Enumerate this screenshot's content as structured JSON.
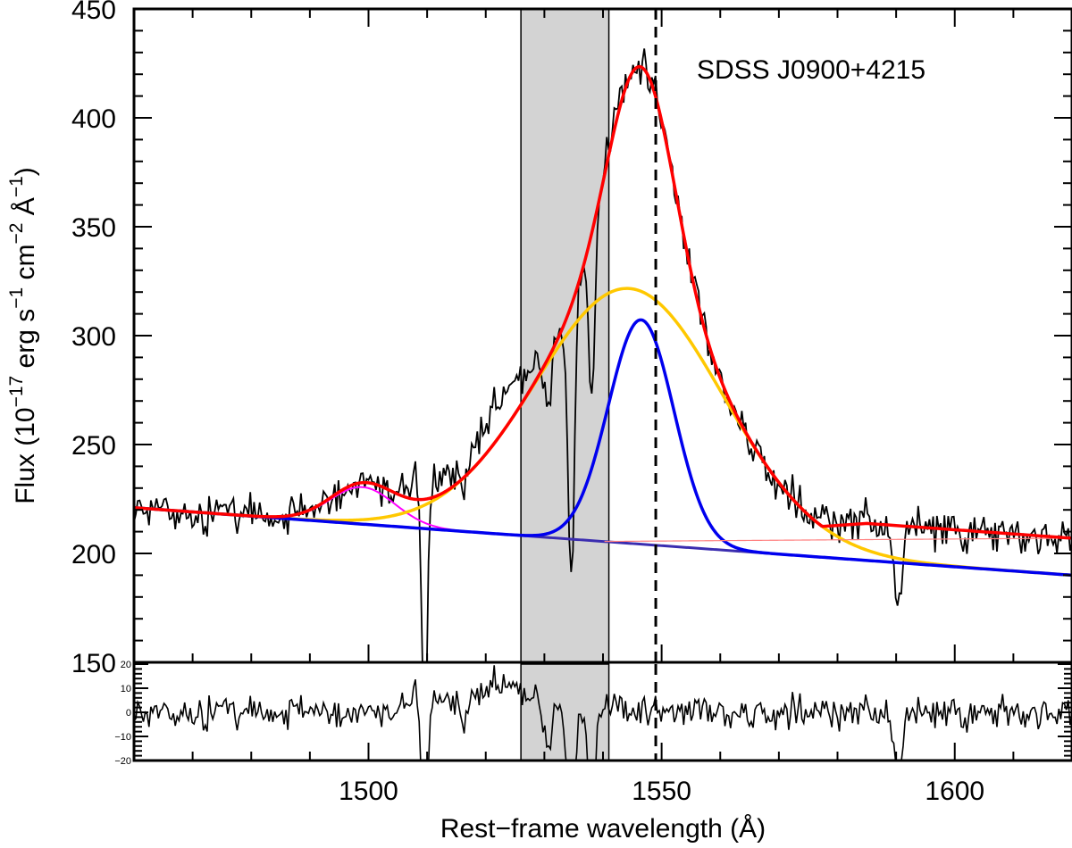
{
  "chart_data": {
    "type": "line",
    "title": "",
    "annotation": "SDSS J0900+4215",
    "xlabel": "Rest−frame wavelength (Å)",
    "ylabel": {
      "base": "Flux (10",
      "exp1": "−17",
      "mid1": " erg s",
      "exp2": "−1",
      "mid2": " cm",
      "exp3": "−2",
      "mid3": " Å",
      "exp4": "−1",
      "end": ")"
    },
    "xlim": [
      1460,
      1620
    ],
    "ylim": [
      150,
      450
    ],
    "residual_ylim": [
      -20,
      20
    ],
    "xticks": [
      {
        "value": 1500,
        "label": "1500"
      },
      {
        "value": 1550,
        "label": "1550"
      },
      {
        "value": 1600,
        "label": "1600"
      }
    ],
    "yticks": [
      {
        "value": 150,
        "label": "150"
      },
      {
        "value": 200,
        "label": "200"
      },
      {
        "value": 250,
        "label": "250"
      },
      {
        "value": 300,
        "label": "300"
      },
      {
        "value": 350,
        "label": "350"
      },
      {
        "value": 400,
        "label": "400"
      },
      {
        "value": 450,
        "label": "450"
      }
    ],
    "residual_yticks": [
      {
        "value": 20,
        "label": "20"
      },
      {
        "value": 10,
        "label": "10"
      },
      {
        "value": 0,
        "label": "0"
      },
      {
        "value": -10,
        "label": "−10"
      },
      {
        "value": -20,
        "label": "−20"
      }
    ],
    "shaded_region": {
      "x": [
        1526,
        1541
      ],
      "color": "#d3d3d3"
    },
    "reference_line": {
      "x": 1549,
      "style": "dashed"
    },
    "continuum": {
      "x": [
        1460,
        1620
      ],
      "y": [
        221,
        190
      ],
      "color": "#3b2db0"
    },
    "components": [
      {
        "name": "broad-gaussian",
        "color": "#ffc800",
        "amplitude": 117,
        "center": 1544.5,
        "sigma": 16
      },
      {
        "name": "narrow-gaussian",
        "color": "#0000ee",
        "amplitude": 103,
        "center": 1546.5,
        "sigma": 5.6
      },
      {
        "name": "weak-line-gaussian",
        "color": "#ff00ff",
        "amplitude": 17,
        "center": 1499,
        "sigma": 5.5
      }
    ],
    "total_fit": {
      "color": "#ff0000",
      "offset_above_continuum": 17
    },
    "absorption_lines": [
      {
        "center": 1509.6,
        "depth": 120,
        "width": 0.45
      },
      {
        "center": 1516.5,
        "depth": 14,
        "width": 0.6
      },
      {
        "center": 1530.5,
        "depth": 24,
        "width": 0.5
      },
      {
        "center": 1534.6,
        "depth": 128,
        "width": 0.55
      },
      {
        "center": 1538.1,
        "depth": 75,
        "width": 0.5
      },
      {
        "center": 1590.3,
        "depth": 38,
        "width": 0.7
      },
      {
        "center": 1601.8,
        "depth": 10,
        "width": 0.5
      }
    ],
    "excess_regions": [
      {
        "center": 1523,
        "amplitude": 16,
        "sigma": 4
      },
      {
        "center": 1511,
        "amplitude": 10,
        "sigma": 3.5
      }
    ],
    "noise_rms": 4.5,
    "residual_noise_rms": 3.8,
    "series": [
      {
        "name": "observed-spectrum",
        "color": "#000000"
      },
      {
        "name": "residuals",
        "color": "#000000"
      }
    ]
  }
}
